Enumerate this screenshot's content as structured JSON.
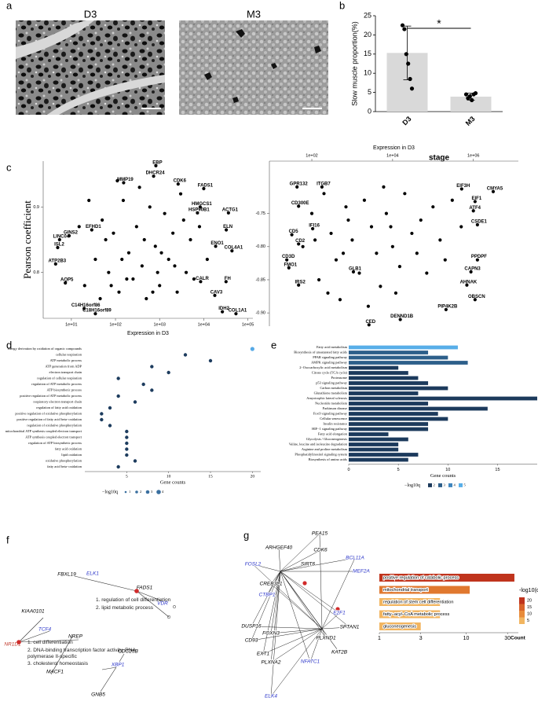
{
  "panel_labels": [
    "a",
    "b",
    "c",
    "d",
    "e",
    "f",
    "g"
  ],
  "images": {
    "left_title": "D3",
    "right_title": "M3"
  },
  "chart_data": [
    {
      "type": "bar",
      "ylabel": "Slow muscle proportion(%)",
      "xlabel": "stage",
      "categories": [
        "D3",
        "M3"
      ],
      "values": [
        15.3,
        3.9
      ],
      "errors": [
        7.0,
        0.9
      ],
      "points": [
        [
          22.5,
          21.5,
          15,
          12.5,
          8.5,
          6
        ],
        [
          4.5,
          3.5,
          4.0,
          3.0,
          4.5,
          4.8
        ]
      ],
      "color": "#d9d9d9",
      "point_color": "#000000",
      "annotation": "*",
      "ylim": [
        0,
        25
      ],
      "yticks": [
        0,
        5,
        10,
        15,
        20,
        25
      ]
    },
    {
      "type": "scatter",
      "ylabel": "Pearson coefficient",
      "xlabel": "Expression in D3",
      "log_x": true,
      "xaxis_side": "bottom",
      "xlim": [
        2.3,
        130000
      ],
      "ylim": [
        0.73,
        0.97
      ],
      "xticks": [
        {
          "value": 10,
          "label": "1e+01"
        },
        {
          "value": 100,
          "label": "1e+02"
        },
        {
          "value": 1000,
          "label": "1e+03"
        },
        {
          "value": 10000,
          "label": "1e+04"
        },
        {
          "value": 100000,
          "label": "1e+05"
        }
      ],
      "yticks": [
        0.8,
        0.9
      ],
      "x": [
        822,
        731,
        153,
        2630,
        10000,
        8300,
        36300,
        7200,
        32400,
        18600,
        43600,
        5.4,
        4.9,
        4.4,
        8500,
        32000,
        17800,
        26400,
        53700,
        19.5,
        35,
        7.3,
        8.9,
        29,
        20,
        35,
        50,
        70,
        90,
        120,
        150,
        200,
        250,
        300,
        400,
        500,
        600,
        800,
        1000,
        1300,
        1600,
        2000,
        2500,
        3000,
        4000,
        5000,
        6000,
        8000,
        12000,
        15,
        25,
        45,
        60,
        110,
        180,
        350,
        700,
        1100,
        2200,
        3500,
        450,
        900,
        140,
        80
      ],
      "y": [
        0.963,
        0.947,
        0.937,
        0.935,
        0.928,
        0.9,
        0.891,
        0.891,
        0.865,
        0.84,
        0.833,
        0.85,
        0.838,
        0.813,
        0.786,
        0.786,
        0.765,
        0.74,
        0.737,
        0.745,
        0.737,
        0.784,
        0.856,
        0.865,
        0.78,
        0.82,
        0.88,
        0.8,
        0.86,
        0.77,
        0.91,
        0.83,
        0.79,
        0.87,
        0.81,
        0.76,
        0.9,
        0.84,
        0.78,
        0.89,
        0.82,
        0.86,
        0.77,
        0.92,
        0.8,
        0.85,
        0.79,
        0.87,
        0.82,
        0.87,
        0.91,
        0.76,
        0.85,
        0.94,
        0.79,
        0.93,
        0.77,
        0.83,
        0.81,
        0.88,
        0.85,
        0.8,
        0.82,
        0.78
      ],
      "labels": [
        "EBP",
        "DHCR24",
        "MMP19",
        "CDK6",
        "FADS1",
        "HMGCS1",
        "ACTG1",
        "HSP90B1",
        "ELN",
        "ENO1",
        "COL4A1",
        "LINC04",
        "ISL2",
        "ATP2B3",
        "CALR",
        "FH",
        "CAV3",
        "IDH2",
        "COL1A1",
        "C14H16orf86",
        "C18H16orf89",
        "AQP5",
        "GINS2",
        "EFHD1",
        null,
        null,
        null,
        null,
        null,
        null,
        null,
        null,
        null,
        null,
        null,
        null,
        null,
        null,
        null,
        null,
        null,
        null,
        null,
        null,
        null,
        null,
        null,
        null,
        null,
        null,
        null,
        null,
        null,
        null,
        null,
        null,
        null,
        null,
        null,
        null,
        null,
        null,
        null,
        null
      ],
      "color": "#000000"
    },
    {
      "type": "scatter",
      "xlabel": "Expression in D3",
      "log_x": true,
      "xaxis_side": "top",
      "xlim": [
        8.9,
        13000000
      ],
      "ylim": [
        -0.92,
        -0.671
      ],
      "xticks": [
        {
          "value": 100,
          "label": "1e+02"
        },
        {
          "value": 10000,
          "label": "1e+04"
        },
        {
          "value": 1000000,
          "label": "1e+06"
        }
      ],
      "yticks": [
        -0.75,
        {
          "value": -0.8,
          "label": "-0.80"
        },
        -0.85,
        {
          "value": -0.9,
          "label": "-0.90"
        }
      ],
      "x": [
        43,
        178,
        3100000,
        513000,
        1100000,
        47,
        1000000,
        1260000,
        105,
        32,
        47,
        24,
        27,
        1260000,
        870000,
        47,
        690000,
        1100000,
        210000,
        15500,
        2600,
        1070,
        60,
        100,
        150,
        200,
        300,
        400,
        500,
        700,
        1000,
        1500,
        2000,
        3000,
        4000,
        5000,
        7000,
        10000,
        15000,
        20000,
        30000,
        50000,
        70000,
        100000,
        150000,
        200000,
        300000,
        500000,
        250,
        800,
        2500,
        6000,
        12000,
        40000,
        120,
        600,
        9000
      ],
      "y": [
        -0.71,
        -0.71,
        -0.717,
        -0.713,
        -0.732,
        -0.739,
        -0.746,
        -0.767,
        -0.773,
        -0.782,
        -0.796,
        -0.82,
        -0.832,
        -0.82,
        -0.838,
        -0.858,
        -0.858,
        -0.88,
        -0.895,
        -0.91,
        -0.918,
        -0.838,
        -0.8,
        -0.75,
        -0.85,
        -0.72,
        -0.78,
        -0.82,
        -0.88,
        -0.74,
        -0.79,
        -0.84,
        -0.73,
        -0.77,
        -0.81,
        -0.86,
        -0.75,
        -0.8,
        -0.83,
        -0.72,
        -0.78,
        -0.76,
        -0.84,
        -0.74,
        -0.79,
        -0.82,
        -0.73,
        -0.77,
        -0.87,
        -0.76,
        -0.89,
        -0.71,
        -0.87,
        -0.81,
        -0.79,
        -0.81,
        -0.77
      ],
      "labels": [
        "GPR132",
        "ITGB7",
        "CMYA5",
        "EIF3H",
        "EIF1",
        "CD300E",
        "ATF4",
        "CSDE1",
        "IFI16",
        "CD5",
        "CD2",
        "CD3D",
        "FMO1",
        "PPDPF",
        "CAPN3",
        "IRS2",
        "AHNAK",
        "OBSCN",
        "PIP4K2B",
        "DENND1B",
        "CED",
        "GLB1",
        null,
        null,
        null,
        null,
        null,
        null,
        null,
        null,
        null,
        null,
        null,
        null,
        null,
        null,
        null,
        null,
        null,
        null,
        null,
        null,
        null,
        null,
        null,
        null,
        null,
        null,
        null,
        null,
        null,
        null,
        null,
        null,
        null,
        null,
        null
      ],
      "color": "#000000"
    },
    {
      "type": "dot",
      "xlabel": "Gene counts",
      "legend_title": "−log10q",
      "size_legend": [
        1,
        2,
        3,
        4
      ],
      "categories": [
        "energy derivation by oxidation of organic compounds",
        "cellular respiration",
        "ATP metabolic process",
        "ATP generation from ADP",
        "electron transport chain",
        "regulation of cellular respiration",
        "regulation of ATP metabolic process",
        "ATP biosynthetic process",
        "positive regulation of ATP metabolic process",
        "respiratory electron transport chain",
        "regulation of fatty acid oxidation",
        "positive regulation of oxidative phosphorylation",
        "positive regulation of fatty acid beta−oxidation",
        "regulation of oxidative phosphorylation",
        "mitochondrial ATP synthesis coupled electron transport",
        "ATP synthesis coupled electron transport",
        "regulation of ATP biosynthetic process",
        "fatty acid oxidation",
        "lipid oxidation",
        "oxidative phosphorylation",
        "fatty acid beta−oxidation"
      ],
      "values": [
        20,
        12,
        15,
        8,
        10,
        4,
        7,
        8,
        4,
        6,
        3,
        2,
        2,
        3,
        5,
        5,
        5,
        5,
        5,
        6,
        4
      ],
      "colors": [
        "#56a9e6",
        "#1d3c5e",
        "#1d3c5e",
        "#1d3c5e",
        "#1d3c5e",
        "#1d3c5e",
        "#1d3c5e",
        "#1d3c5e",
        "#1d3c5e",
        "#1d3c5e",
        "#1d3c5e",
        "#1d3c5e",
        "#1d3c5e",
        "#1d3c5e",
        "#1d3c5e",
        "#1d3c5e",
        "#1d3c5e",
        "#1d3c5e",
        "#1d3c5e",
        "#1d3c5e",
        "#1d3c5e"
      ],
      "xlim": [
        0,
        21
      ],
      "xticks": [
        5,
        10,
        15,
        20
      ]
    },
    {
      "type": "hbar",
      "xlabel": "Gene counts",
      "legend_title": "−log10q",
      "color_legend": [
        2,
        3,
        4,
        5
      ],
      "legend_colors": [
        "#1c3a5c",
        "#2d5f8a",
        "#3f86bf",
        "#58aee8"
      ],
      "categories": [
        "Fatty acid metabolism",
        "Biosynthesis of unsaturated fatty acids",
        "PPAR signaling pathway",
        "AMPK signaling pathway",
        "2−Oxocarboxylic acid metabolism",
        "Citrate cycle (TCA cycle)",
        "Proteasome",
        "p53 signaling pathway",
        "Carbon metabolism",
        "Glutathione metabolism",
        "Amyotrophic lateral sclerosis",
        "Nucleotide metabolism",
        "Parkinson disease",
        "FoxO signaling pathway",
        "Cellular senescence",
        "Insulin resistance",
        "HIF−1 signaling pathway",
        "Fatty acid elongation",
        "Glycolysis / Gluconeogenesis",
        "Valine, leucine and isoleucine degradation",
        "Arginine and proline metabolism",
        "Phosphatidylinositol signaling system",
        "Biosynthesis of amino acids"
      ],
      "values": [
        11,
        8,
        10,
        12,
        5,
        6,
        7,
        8,
        10,
        7,
        19,
        8,
        14,
        9,
        10,
        8,
        8,
        4,
        6,
        5,
        5,
        7,
        6
      ],
      "colors": [
        "#58aee8",
        "#2d5f8a",
        "#2d5f8a",
        "#2d5f8a",
        "#1c3a5c",
        "#1c3a5c",
        "#1c3a5c",
        "#1c3a5c",
        "#1c3a5c",
        "#1c3a5c",
        "#1c3a5c",
        "#1c3a5c",
        "#1c3a5c",
        "#1c3a5c",
        "#1c3a5c",
        "#1c3a5c",
        "#1c3a5c",
        "#1c3a5c",
        "#1c3a5c",
        "#1c3a5c",
        "#1c3a5c",
        "#1c3a5c",
        "#1c3a5c"
      ],
      "xlim": [
        0,
        19
      ],
      "xticks": [
        0,
        5,
        10,
        15
      ]
    },
    {
      "type": "hbar",
      "log_x": true,
      "xlabel": "Count",
      "legend_title": "-log10(q)",
      "color_legend": [
        20,
        15,
        10,
        5
      ],
      "legend_colors": [
        "#c0341d",
        "#d9642b",
        "#e88b3a",
        "#f2b560"
      ],
      "categories": [
        "positive regulation of catabolic process",
        "mitochondrial transport",
        "regulation of stem cell differentiation",
        "fatty−acyl−CoA metabolic process",
        "gluconeogenesis"
      ],
      "values": [
        36,
        11,
        5,
        5,
        3
      ],
      "colors": [
        "#c0341d",
        "#e0782f",
        "#f2b560",
        "#f2b560",
        "#f2b560"
      ],
      "xlim": [
        1,
        40
      ],
      "xticks": [
        1,
        3,
        10,
        30
      ]
    }
  ],
  "networks": {
    "f": {
      "nodes": [
        {
          "label": "FBXL19",
          "color": "#000000"
        },
        {
          "label": "ELK1",
          "color": "#2b35c9"
        },
        {
          "label": "FADS1",
          "color": "#000000"
        },
        {
          "label": "VDR",
          "color": "#2b35c9"
        },
        {
          "label": "KIAA0101",
          "color": "#000000"
        },
        {
          "label": "TCF4",
          "color": "#2b35c9"
        },
        {
          "label": "NREP",
          "color": "#000000"
        },
        {
          "label": "NR1D1",
          "color": "#c0392b"
        },
        {
          "label": "CDC25B",
          "color": "#000000"
        },
        {
          "label": "XBP1",
          "color": "#2b35c9"
        },
        {
          "label": "MACF1",
          "color": "#000000"
        },
        {
          "label": "GNB5",
          "color": "#000000"
        }
      ],
      "annotations": [
        "1. regulation of cell differentiation",
        "2. lipid metabolic process",
        "1. cell differentiation",
        "2. DNA-binding transcription factor activity, RNA polymerase II-specific",
        "3. cholesterol homeostasis"
      ]
    },
    "g": {
      "nodes": [
        {
          "label": "FOSL2",
          "color": "#2b35c9"
        },
        {
          "label": "ARHGEF40",
          "color": "#000000"
        },
        {
          "label": "PEA15",
          "color": "#000000"
        },
        {
          "label": "CDK6",
          "color": "#000000"
        },
        {
          "label": "BCL11A",
          "color": "#2b35c9"
        },
        {
          "label": "MEF2A",
          "color": "#2b35c9"
        },
        {
          "label": "CREB3L1",
          "color": "#000000"
        },
        {
          "label": "CTBP1",
          "color": "#2b35c9"
        },
        {
          "label": "E2F1",
          "color": "#2b35c9"
        },
        {
          "label": "SPTAN1",
          "color": "#000000"
        },
        {
          "label": "PLXND1",
          "color": "#000000"
        },
        {
          "label": "KAT2B",
          "color": "#000000"
        },
        {
          "label": "NFATC1",
          "color": "#2b35c9"
        },
        {
          "label": "ELK4",
          "color": "#2b35c9"
        },
        {
          "label": "CD93",
          "color": "#000000"
        },
        {
          "label": "DUSP16",
          "color": "#000000"
        },
        {
          "label": "FOXN3",
          "color": "#000000"
        },
        {
          "label": "EXT1",
          "color": "#000000"
        },
        {
          "label": "PLXNA2",
          "color": "#000000"
        },
        {
          "label": "SIRT6",
          "color": "#000000"
        }
      ]
    }
  }
}
